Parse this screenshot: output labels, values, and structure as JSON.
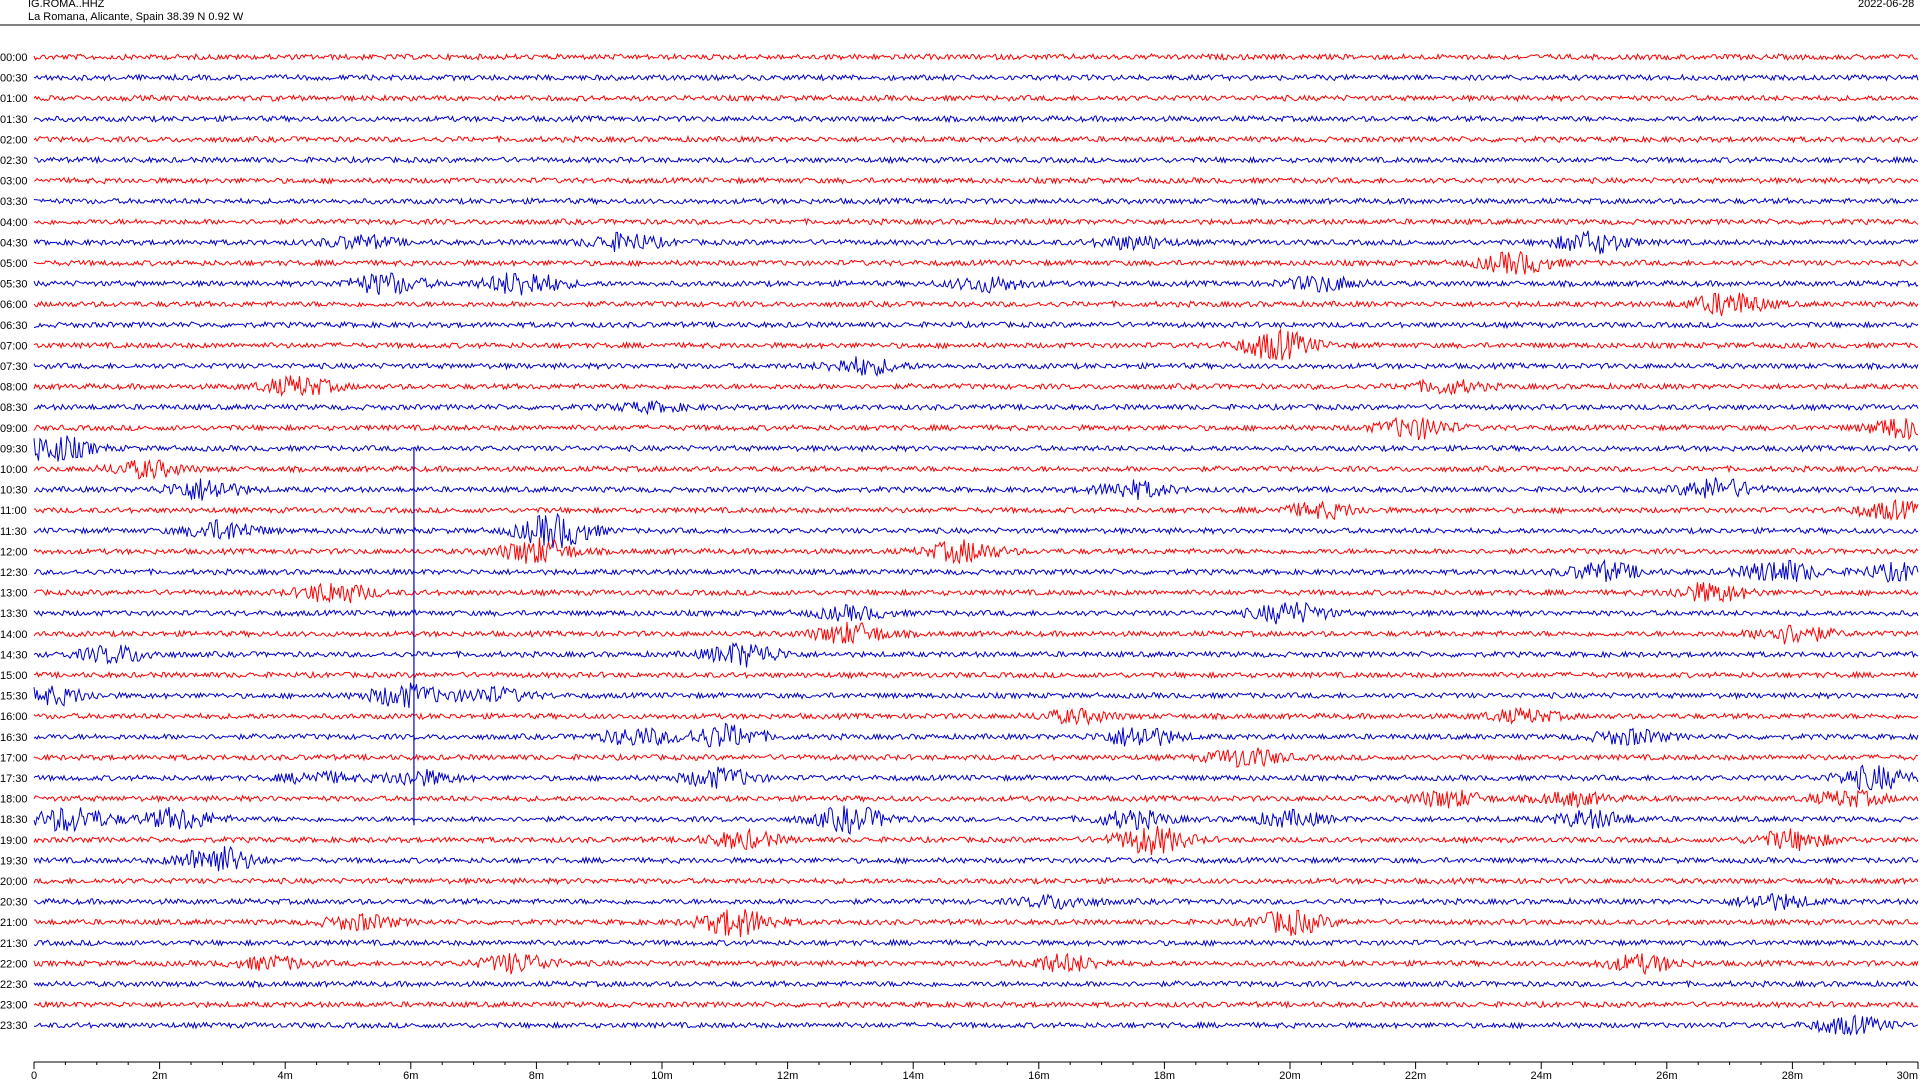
{
  "header": {
    "station": "IG.ROMA..HHZ",
    "location": "La Romana, Alicante, Spain  38.39 N 0.92 W",
    "date": "2022-06-28"
  },
  "colors": {
    "red_trace": "#ff0000",
    "blue_trace": "#0000cc",
    "axis": "#000000"
  },
  "chart_data": {
    "type": "line",
    "title": "",
    "xlabel": "",
    "ylabel": "",
    "x_ticks": [
      "0",
      "2m",
      "4m",
      "6m",
      "8m",
      "10m",
      "12m",
      "14m",
      "16m",
      "18m",
      "20m",
      "22m",
      "24m",
      "26m",
      "28m",
      "30m"
    ],
    "xlim": [
      0,
      30
    ],
    "row_labels": [
      "00:00",
      "00:30",
      "01:00",
      "01:30",
      "02:00",
      "02:30",
      "03:00",
      "03:30",
      "04:00",
      "04:30",
      "05:00",
      "05:30",
      "06:00",
      "06:30",
      "07:00",
      "07:30",
      "08:00",
      "08:30",
      "09:00",
      "09:30",
      "10:00",
      "10:30",
      "11:00",
      "11:30",
      "12:00",
      "12:30",
      "13:00",
      "13:30",
      "14:00",
      "14:30",
      "15:00",
      "15:30",
      "16:00",
      "16:30",
      "17:00",
      "17:30",
      "18:00",
      "18:30",
      "19:00",
      "19:30",
      "20:00",
      "20:30",
      "21:00",
      "21:30",
      "22:00",
      "22:30",
      "23:00",
      "23:30"
    ],
    "trace_colors_alternate": [
      "red",
      "blue"
    ],
    "bursts": [
      {
        "row": "04:30",
        "t": 5.2,
        "amp": 6
      },
      {
        "row": "04:30",
        "t": 9.4,
        "amp": 8
      },
      {
        "row": "04:30",
        "t": 17.5,
        "amp": 6
      },
      {
        "row": "04:30",
        "t": 24.8,
        "amp": 10
      },
      {
        "row": "05:00",
        "t": 23.6,
        "amp": 10
      },
      {
        "row": "05:30",
        "t": 5.6,
        "amp": 10
      },
      {
        "row": "05:30",
        "t": 7.8,
        "amp": 12
      },
      {
        "row": "05:30",
        "t": 15.2,
        "amp": 7
      },
      {
        "row": "05:30",
        "t": 20.5,
        "amp": 7
      },
      {
        "row": "06:00",
        "t": 27.0,
        "amp": 11
      },
      {
        "row": "07:00",
        "t": 19.8,
        "amp": 14
      },
      {
        "row": "07:30",
        "t": 13.2,
        "amp": 8
      },
      {
        "row": "08:00",
        "t": 4.2,
        "amp": 9
      },
      {
        "row": "08:00",
        "t": 22.5,
        "amp": 6
      },
      {
        "row": "08:30",
        "t": 9.8,
        "amp": 4
      },
      {
        "row": "09:00",
        "t": 22.0,
        "amp": 10
      },
      {
        "row": "09:00",
        "t": 29.8,
        "amp": 10
      },
      {
        "row": "09:30",
        "t": 0.3,
        "amp": 13
      },
      {
        "row": "10:00",
        "t": 1.8,
        "amp": 8
      },
      {
        "row": "10:30",
        "t": 2.7,
        "amp": 10
      },
      {
        "row": "10:30",
        "t": 17.5,
        "amp": 8
      },
      {
        "row": "10:30",
        "t": 26.8,
        "amp": 10
      },
      {
        "row": "11:00",
        "t": 20.5,
        "amp": 7
      },
      {
        "row": "11:00",
        "t": 29.6,
        "amp": 8
      },
      {
        "row": "11:30",
        "t": 3.0,
        "amp": 9
      },
      {
        "row": "11:30",
        "t": 8.3,
        "amp": 16
      },
      {
        "row": "12:00",
        "t": 8.0,
        "amp": 12
      },
      {
        "row": "12:00",
        "t": 14.8,
        "amp": 10
      },
      {
        "row": "12:30",
        "t": 25.0,
        "amp": 9
      },
      {
        "row": "12:30",
        "t": 27.8,
        "amp": 11
      },
      {
        "row": "12:30",
        "t": 29.7,
        "amp": 8
      },
      {
        "row": "13:00",
        "t": 4.8,
        "amp": 10
      },
      {
        "row": "13:00",
        "t": 26.7,
        "amp": 9
      },
      {
        "row": "13:30",
        "t": 13.0,
        "amp": 6
      },
      {
        "row": "13:30",
        "t": 20.0,
        "amp": 10
      },
      {
        "row": "14:00",
        "t": 13.0,
        "amp": 10
      },
      {
        "row": "14:00",
        "t": 28.0,
        "amp": 9
      },
      {
        "row": "14:30",
        "t": 1.3,
        "amp": 8
      },
      {
        "row": "14:30",
        "t": 11.3,
        "amp": 11
      },
      {
        "row": "15:30",
        "t": 0.3,
        "amp": 8
      },
      {
        "row": "15:30",
        "t": 5.9,
        "amp": 11
      },
      {
        "row": "15:30",
        "t": 7.3,
        "amp": 7
      },
      {
        "row": "16:00",
        "t": 16.6,
        "amp": 6
      },
      {
        "row": "16:00",
        "t": 23.7,
        "amp": 6
      },
      {
        "row": "16:30",
        "t": 9.6,
        "amp": 8
      },
      {
        "row": "16:30",
        "t": 11.0,
        "amp": 11
      },
      {
        "row": "16:30",
        "t": 17.6,
        "amp": 10
      },
      {
        "row": "16:30",
        "t": 25.4,
        "amp": 7
      },
      {
        "row": "17:00",
        "t": 19.3,
        "amp": 9
      },
      {
        "row": "17:30",
        "t": 4.5,
        "amp": 5
      },
      {
        "row": "17:30",
        "t": 6.1,
        "amp": 7
      },
      {
        "row": "17:30",
        "t": 10.9,
        "amp": 9
      },
      {
        "row": "17:30",
        "t": 29.3,
        "amp": 11
      },
      {
        "row": "18:00",
        "t": 22.5,
        "amp": 8
      },
      {
        "row": "18:00",
        "t": 24.5,
        "amp": 6
      },
      {
        "row": "18:00",
        "t": 28.9,
        "amp": 7
      },
      {
        "row": "18:30",
        "t": 0.6,
        "amp": 12
      },
      {
        "row": "18:30",
        "t": 2.3,
        "amp": 10
      },
      {
        "row": "18:30",
        "t": 13.0,
        "amp": 12
      },
      {
        "row": "18:30",
        "t": 17.5,
        "amp": 8
      },
      {
        "row": "18:30",
        "t": 20.0,
        "amp": 7
      },
      {
        "row": "18:30",
        "t": 24.8,
        "amp": 8
      },
      {
        "row": "19:00",
        "t": 11.3,
        "amp": 8
      },
      {
        "row": "19:00",
        "t": 17.8,
        "amp": 13
      },
      {
        "row": "19:00",
        "t": 28.0,
        "amp": 9
      },
      {
        "row": "19:30",
        "t": 2.9,
        "amp": 14
      },
      {
        "row": "20:30",
        "t": 16.3,
        "amp": 6
      },
      {
        "row": "20:30",
        "t": 27.7,
        "amp": 7
      },
      {
        "row": "21:00",
        "t": 5.2,
        "amp": 7
      },
      {
        "row": "21:00",
        "t": 11.2,
        "amp": 13
      },
      {
        "row": "21:00",
        "t": 20.0,
        "amp": 11
      },
      {
        "row": "22:00",
        "t": 3.8,
        "amp": 6
      },
      {
        "row": "22:00",
        "t": 7.7,
        "amp": 9
      },
      {
        "row": "22:00",
        "t": 16.4,
        "amp": 8
      },
      {
        "row": "22:00",
        "t": 25.6,
        "amp": 8
      },
      {
        "row": "23:30",
        "t": 28.9,
        "amp": 8
      }
    ],
    "spikes": [
      {
        "t": 6.05,
        "from_row": "09:30",
        "to_row": "18:30"
      }
    ],
    "grid": false
  }
}
